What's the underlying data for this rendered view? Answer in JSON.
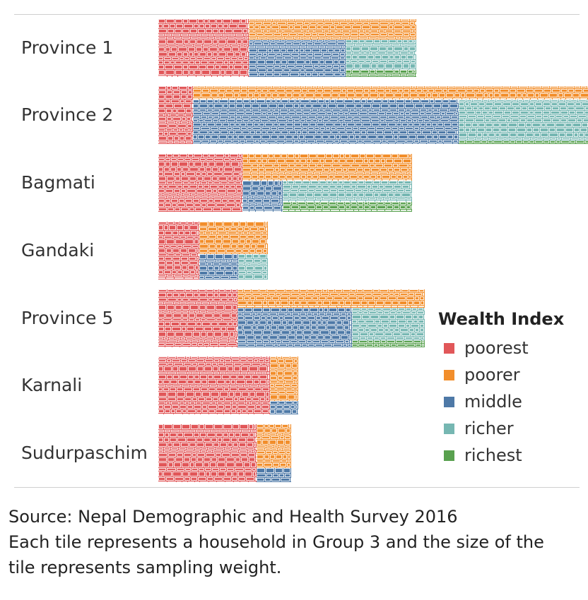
{
  "chart_data": {
    "type": "treemap",
    "unit": "tiles = households (sized by sampling weight)",
    "categories": [
      "Province 1",
      "Province 2",
      "Bagmati",
      "Gandaki",
      "Province 5",
      "Karnali",
      "Sudurpaschim"
    ],
    "series": [
      {
        "name": "poorest",
        "values": [
          42,
          16,
          39,
          19,
          37,
          52,
          46
        ]
      },
      {
        "name": "poorer",
        "values": [
          28,
          44,
          37,
          18,
          28,
          10,
          12
        ]
      },
      {
        "name": "middle",
        "values": [
          29,
          95,
          10,
          8,
          36,
          3,
          4
        ]
      },
      {
        "name": "richer",
        "values": [
          17,
          46,
          22,
          6,
          19,
          0,
          0
        ]
      },
      {
        "name": "richest",
        "values": [
          4,
          4,
          10,
          0,
          4,
          0,
          0
        ]
      }
    ],
    "colors": {
      "poorest": "#e15759",
      "poorer": "#f28e2b",
      "middle": "#4e79a7",
      "richer": "#76b7b2",
      "richest": "#59a14f"
    },
    "legend": {
      "title": "Wealth Index",
      "position": "right"
    }
  },
  "legend_title": "Wealth Index",
  "legend_items": [
    "poorest",
    "poorer",
    "middle",
    "richer",
    "richest"
  ],
  "source": {
    "line1": "Source: Nepal Demographic and Health Survey 2016",
    "line2": "Each tile represents a household in Group 3 and the size of the",
    "line3": "tile represents sampling weight."
  }
}
